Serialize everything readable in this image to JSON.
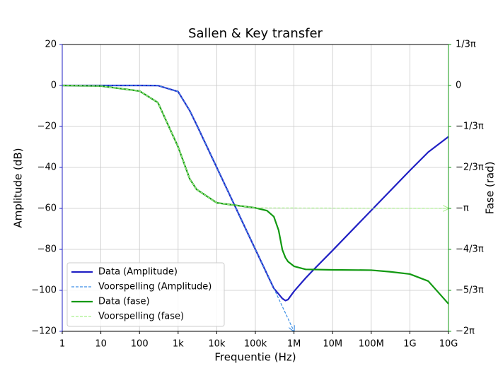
{
  "chart_data": {
    "type": "line",
    "title": "Sallen & Key transfer",
    "xlabel": "Frequentie (Hz)",
    "ylabel": "Amplitude (dB)",
    "y2label": "Fase (rad)",
    "xscale": "log",
    "grid": true,
    "legend": "lower left",
    "xlim": [
      1,
      10000000000
    ],
    "xticks": [
      1,
      10,
      100,
      {
        "value": 1000,
        "label": "1k"
      },
      {
        "value": 10000,
        "label": "10k"
      },
      {
        "value": 100000,
        "label": "100k"
      },
      {
        "value": 1000000,
        "label": "1M"
      },
      {
        "value": 10000000,
        "label": "10M"
      },
      {
        "value": 100000000,
        "label": "100M"
      },
      {
        "value": 1000000000,
        "label": "1G"
      },
      {
        "value": 10000000000,
        "label": "10G"
      }
    ],
    "ylim": [
      -120,
      20
    ],
    "yticks": [
      {
        "value": -120,
        "label": "−120"
      },
      {
        "value": -100,
        "label": "−100"
      },
      {
        "value": -80,
        "label": "−80"
      },
      {
        "value": -60,
        "label": "−60"
      },
      {
        "value": -40,
        "label": "−40"
      },
      {
        "value": -20,
        "label": "−20"
      },
      0,
      20
    ],
    "y2lim": [
      -6.2832,
      1.0472
    ],
    "y2ticks": [
      {
        "value": -6.2832,
        "label": "−2π"
      },
      {
        "value": -5.236,
        "label": "−5/3π"
      },
      {
        "value": -4.1888,
        "label": "−4/3π"
      },
      {
        "value": -3.1416,
        "label": "−π"
      },
      {
        "value": -2.0944,
        "label": "−2/3π"
      },
      {
        "value": -1.0472,
        "label": "−1/3π"
      },
      0,
      {
        "value": 1.0472,
        "label": "1/3π"
      }
    ],
    "series": [
      {
        "name": "Data (Amplitude)",
        "color": "#2121c4",
        "linestyle": "solid",
        "x": [
          1,
          10,
          100,
          300,
          1000,
          2000,
          3000,
          10000,
          100000,
          300000,
          500000,
          600000,
          700000,
          1000000,
          2000000,
          3000000,
          10000000,
          100000000,
          1000000000,
          3000000000,
          10000000000
        ],
        "values": [
          0,
          0,
          0,
          -0.04,
          -3,
          -12.3,
          -19.1,
          -40,
          -80,
          -99,
          -104,
          -105,
          -104.5,
          -100.5,
          -94,
          -90.5,
          -80.5,
          -61,
          -41.5,
          -32.5,
          -25
        ]
      },
      {
        "name": "Voorspelling (Amplitude)",
        "color": "#3a8ee6",
        "linestyle": "dashed",
        "x": [
          1,
          10,
          100,
          300,
          1000,
          2000,
          3000,
          10000,
          100000,
          300000,
          1000000
        ],
        "values": [
          0,
          0,
          0,
          -0.04,
          -3,
          -12.3,
          -19.1,
          -40,
          -80,
          -99,
          -120
        ]
      },
      {
        "name": "Data (fase)",
        "color": "#119911",
        "linestyle": "solid",
        "axis": "y2",
        "x": [
          1,
          10,
          100,
          300,
          1000,
          2000,
          3000,
          10000,
          100000,
          200000,
          300000,
          400000,
          500000,
          600000,
          700000,
          1000000,
          2000000,
          10000000,
          100000000,
          300000000,
          1000000000,
          3000000000,
          10000000000
        ],
        "values": [
          0,
          -0.0141,
          -0.142,
          -0.436,
          -1.571,
          -2.388,
          -2.655,
          -2.999,
          -3.128,
          -3.2,
          -3.35,
          -3.7,
          -4.2,
          -4.4,
          -4.5,
          -4.62,
          -4.7,
          -4.712,
          -4.72,
          -4.76,
          -4.82,
          -5.0,
          -5.58
        ]
      },
      {
        "name": "Voorspelling (fase)",
        "color": "#a8f08a",
        "linestyle": "dashed",
        "axis": "y2",
        "x": [
          1,
          10,
          100,
          300,
          1000,
          2000,
          3000,
          10000,
          100000,
          10000000000
        ],
        "values": [
          0,
          -0.0141,
          -0.142,
          -0.436,
          -1.571,
          -2.388,
          -2.655,
          -2.999,
          -3.128,
          -3.1416
        ]
      }
    ]
  }
}
